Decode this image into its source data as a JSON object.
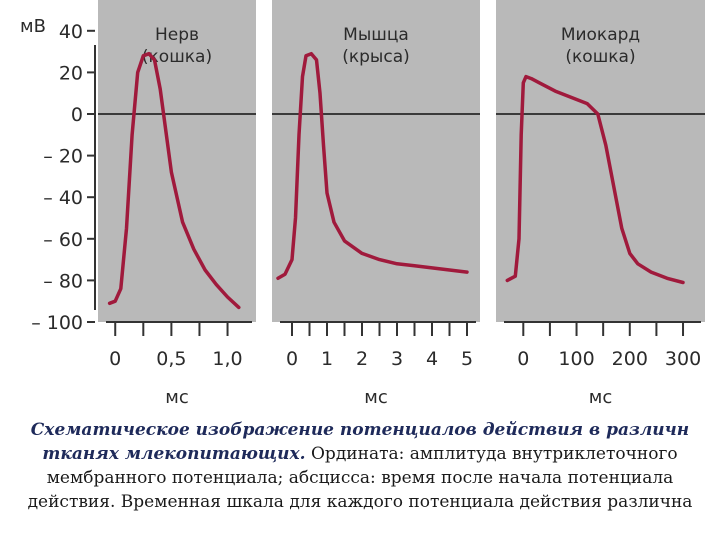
{
  "chart_data": {
    "type": "line",
    "y_unit": "мВ",
    "y_ticks": [
      40,
      20,
      0,
      -20,
      -40,
      -60,
      -80,
      -100
    ],
    "y_tick_labels": [
      "40",
      "20",
      "0",
      "– 20",
      "– 40",
      "– 60",
      "– 80",
      "– 100"
    ],
    "ylim": [
      -100,
      50
    ],
    "zero_line": 0,
    "panels": [
      {
        "title_line1": "Нерв",
        "title_line2": "(кошка)",
        "xlabel": "мс",
        "x_ticks": [
          0,
          0.5,
          1.0
        ],
        "x_tick_labels": [
          "0",
          "0,5",
          "1,0"
        ],
        "xlim": [
          -0.1,
          1.2
        ],
        "series": [
          {
            "color": "#a01a3c",
            "x": [
              -0.05,
              0.0,
              0.05,
              0.1,
              0.15,
              0.2,
              0.25,
              0.3,
              0.35,
              0.4,
              0.45,
              0.5,
              0.6,
              0.7,
              0.8,
              0.9,
              1.0,
              1.1
            ],
            "y": [
              -91,
              -90,
              -84,
              -55,
              -10,
              20,
              28,
              29,
              26,
              12,
              -8,
              -28,
              -52,
              -65,
              -75,
              -82,
              -88,
              -93
            ]
          }
        ]
      },
      {
        "title_line1": "Мышца",
        "title_line2": "(крыса)",
        "xlabel": "мс",
        "x_ticks": [
          0,
          1,
          2,
          3,
          4,
          5
        ],
        "x_tick_labels": [
          "0",
          "1",
          "2",
          "3",
          "4",
          "5"
        ],
        "xlim": [
          -0.4,
          5.2
        ],
        "series": [
          {
            "color": "#a01a3c",
            "x": [
              -0.4,
              -0.2,
              0.0,
              0.1,
              0.2,
              0.3,
              0.4,
              0.55,
              0.7,
              0.8,
              0.9,
              1.0,
              1.2,
              1.5,
              2.0,
              2.5,
              3.0,
              3.5,
              4.0,
              4.5,
              5.0
            ],
            "y": [
              -79,
              -77,
              -70,
              -50,
              -10,
              18,
              28,
              29,
              26,
              10,
              -15,
              -38,
              -52,
              -61,
              -67,
              -70,
              -72,
              -73,
              -74,
              -75,
              -76
            ]
          }
        ]
      },
      {
        "title_line1": "Миокард",
        "title_line2": "(кошка)",
        "xlabel": "мс",
        "x_ticks": [
          0,
          100,
          200,
          300
        ],
        "x_tick_labels": [
          "0",
          "100",
          "200",
          "300"
        ],
        "xlim": [
          -40,
          330
        ],
        "series": [
          {
            "color": "#a01a3c",
            "x": [
              -30,
              -15,
              -8,
              -4,
              0,
              5,
              15,
              30,
              60,
              90,
              120,
              140,
              155,
              170,
              185,
              200,
              215,
              240,
              270,
              300
            ],
            "y": [
              -80,
              -78,
              -60,
              -10,
              15,
              18,
              17,
              15,
              11,
              8,
              5,
              0,
              -15,
              -35,
              -55,
              -67,
              -72,
              -76,
              -79,
              -81
            ]
          }
        ]
      }
    ]
  },
  "caption": {
    "bold": "Схематическое изображение потенциалов действия в различн тканях млекопитающих.",
    "regular": "Ордината: амплитуда внутриклеточного мембранного потенциала; абсцисса: время после начала потенциала действия. Временная шкала для каждого потенциала действия различна"
  }
}
